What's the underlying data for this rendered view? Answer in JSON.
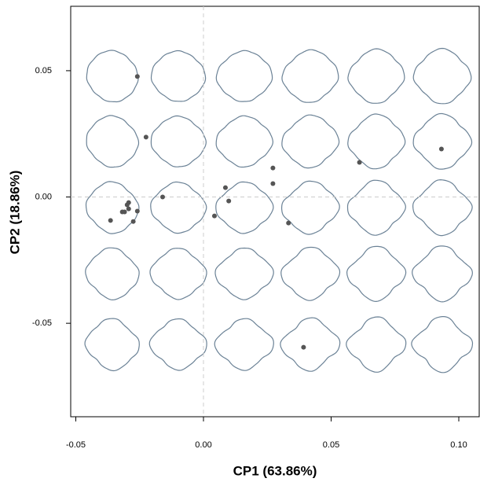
{
  "chart_data": {
    "type": "scatter",
    "x_label": "CP1 (63.86%)",
    "y_label": "CP2 (18.86%)",
    "x": [
      -0.0259,
      -0.0225,
      -0.016,
      -0.0364,
      -0.0318,
      -0.0309,
      -0.0299,
      -0.0293,
      -0.0293,
      -0.0275,
      -0.0259,
      0.0043,
      0.0086,
      0.0099,
      0.0272,
      0.0272,
      0.0333,
      0.0392,
      0.0611,
      0.0932
    ],
    "values": [
      0.0477,
      0.0237,
      0.0,
      -0.0093,
      -0.0059,
      -0.0059,
      -0.0031,
      -0.0047,
      -0.0022,
      -0.0097,
      -0.0056,
      -0.0075,
      0.0037,
      -0.0016,
      0.0115,
      0.0053,
      -0.0103,
      -0.0595,
      0.0137,
      0.019
    ],
    "color": "#555555",
    "xlim": [
      -0.052,
      0.108
    ],
    "ylim": [
      -0.087,
      0.0755
    ],
    "xticks": [
      -0.05,
      {
        "value": 0,
        "label": "0.00"
      },
      0.05,
      {
        "value": 0.1,
        "label": "0.10"
      }
    ],
    "yticks": [
      -0.05,
      {
        "value": 0,
        "label": "0.00"
      },
      0.05
    ],
    "zero_lines": true
  }
}
